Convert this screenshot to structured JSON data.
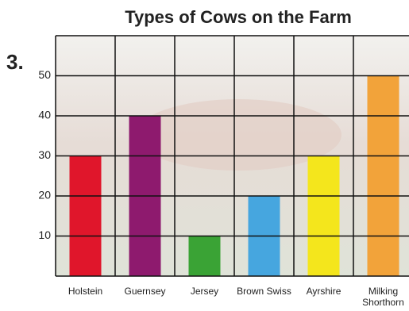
{
  "question_number": "3.",
  "chart_data": {
    "type": "bar",
    "title": "Types of Cows on the Farm",
    "categories": [
      "Holstein",
      "Guernsey",
      "Jersey",
      "Brown Swiss",
      "Ayrshire",
      "Milking Shorthorn"
    ],
    "values": [
      30,
      40,
      10,
      20,
      30,
      50
    ],
    "colors": [
      "#e0162b",
      "#8e1a6e",
      "#3aa335",
      "#46a6df",
      "#f4e61c",
      "#f2a33a"
    ],
    "ylim": [
      0,
      60
    ],
    "yticks": [
      10,
      20,
      30,
      40,
      50
    ],
    "grid": true
  }
}
